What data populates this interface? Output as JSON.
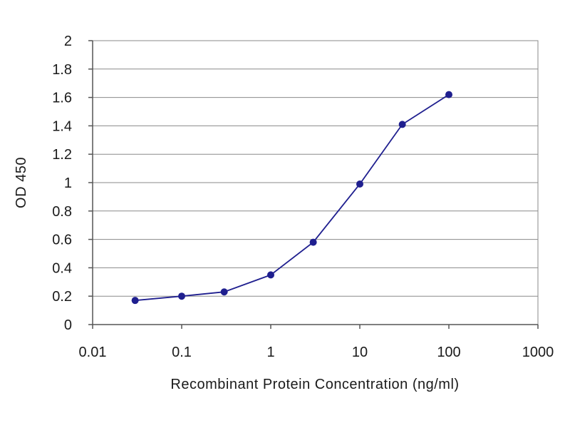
{
  "chart_data": {
    "type": "line",
    "title": "",
    "xlabel": "Recombinant Protein Concentration (ng/ml)",
    "ylabel": "OD 450",
    "x_scale": "log",
    "xlim": [
      0.01,
      1000
    ],
    "ylim": [
      0,
      2
    ],
    "x_ticks": [
      0.01,
      0.1,
      1,
      10,
      100,
      1000
    ],
    "x_tick_labels": [
      "0.01",
      "0.1",
      "1",
      "10",
      "100",
      "1000"
    ],
    "y_ticks": [
      0,
      0.2,
      0.4,
      0.6,
      0.8,
      1,
      1.2,
      1.4,
      1.6,
      1.8,
      2
    ],
    "y_tick_labels": [
      "0",
      "0.2",
      "0.4",
      "0.6",
      "0.8",
      "1",
      "1.2",
      "1.4",
      "1.6",
      "1.8",
      "2"
    ],
    "grid": "horizontal",
    "legend": "none",
    "series": [
      {
        "x": [
          0.03,
          0.1,
          0.3,
          1,
          3,
          10,
          30,
          100
        ],
        "y": [
          0.17,
          0.2,
          0.23,
          0.35,
          0.58,
          0.99,
          1.41,
          1.62
        ],
        "color": "#1f1f8f"
      }
    ]
  }
}
